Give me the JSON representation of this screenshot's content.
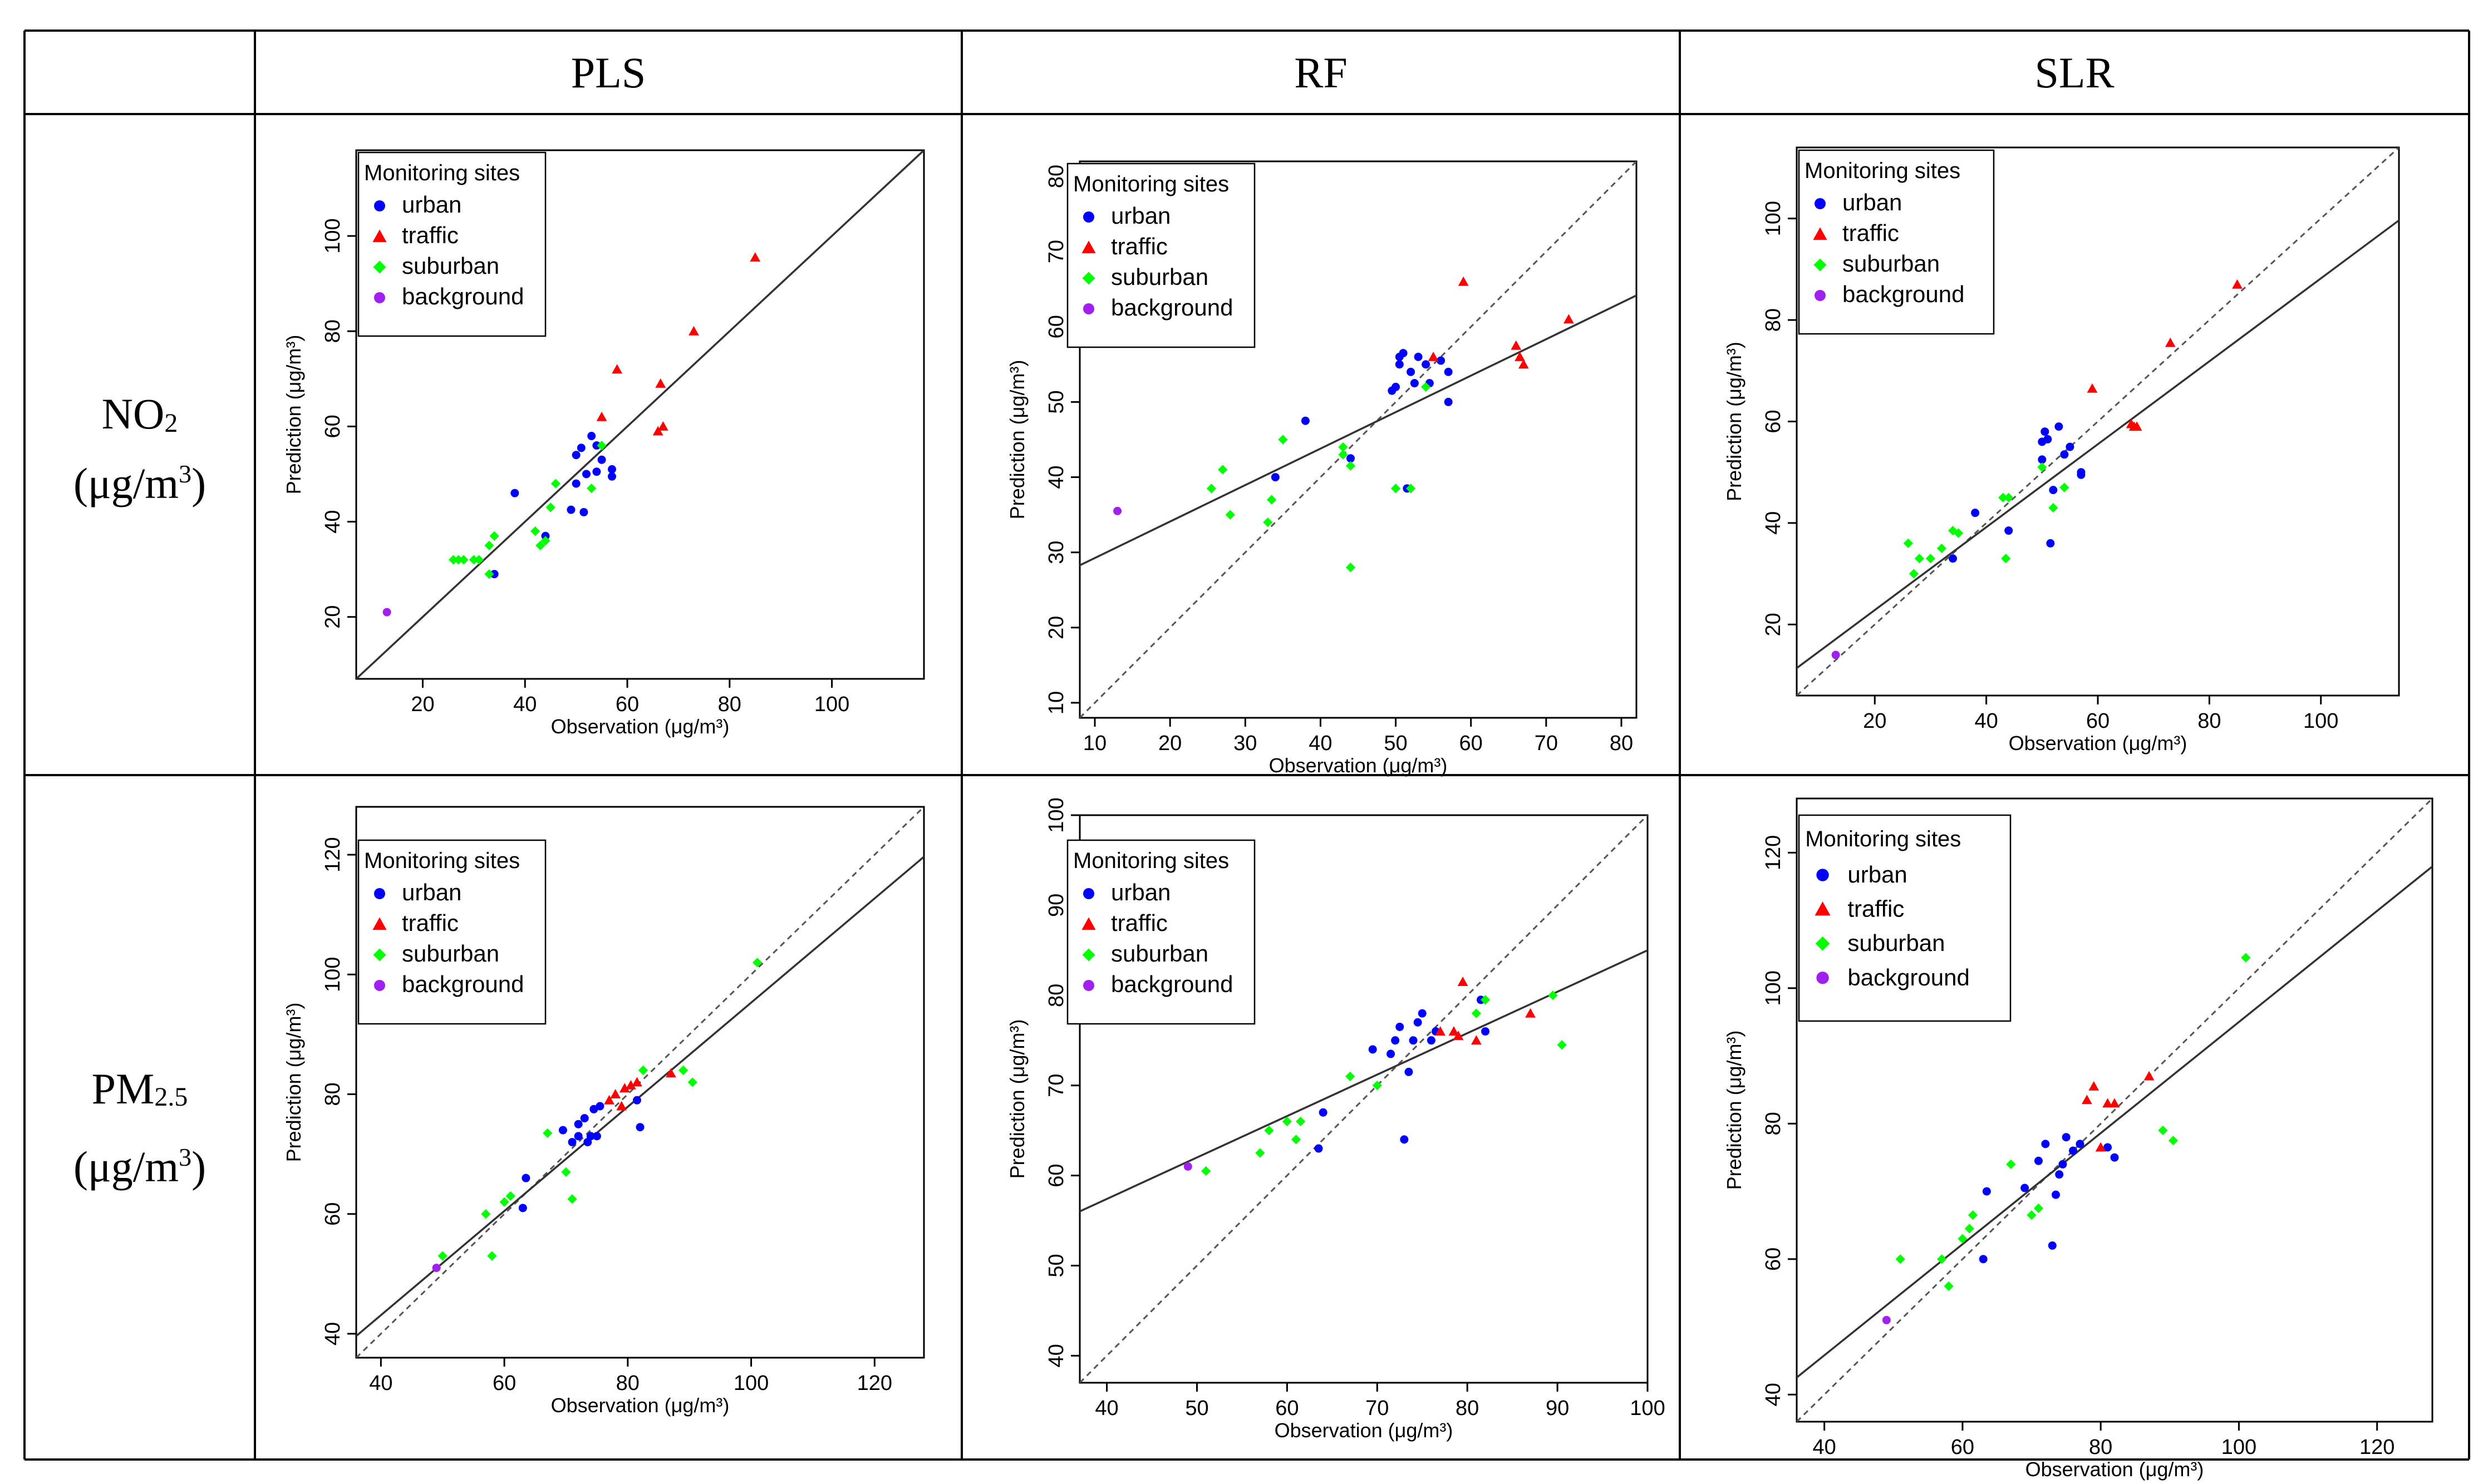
{
  "table": {
    "corner_label": "",
    "columns": [
      "PLS",
      "RF",
      "SLR"
    ],
    "rows": [
      {
        "label_main": "NO",
        "label_sub": "2",
        "unit_pre": "(μg/m",
        "unit_sup": "3",
        "unit_post": ")"
      },
      {
        "label_main": "PM",
        "label_sub": "2.5",
        "unit_pre": "(μg/m",
        "unit_sup": "3",
        "unit_post": ")"
      }
    ]
  },
  "colors": {
    "urban": "#0000ff",
    "traffic": "#ff0000",
    "suburban": "#00ff00",
    "background": "#a020f0",
    "grid_line": "#000000",
    "fit_line": "#333333",
    "identity_line": "#555555"
  },
  "legend": {
    "title": "Monitoring sites",
    "items": [
      {
        "key": "urban",
        "label": "urban",
        "marker": "circle"
      },
      {
        "key": "traffic",
        "label": "traffic",
        "marker": "triangle"
      },
      {
        "key": "suburban",
        "label": "suburban",
        "marker": "diamond"
      },
      {
        "key": "background",
        "label": "background",
        "marker": "circle"
      }
    ]
  },
  "chart_data": [
    {
      "type": "scatter",
      "title": "NO2 - PLS",
      "xlabel": "Observation (μg/m³)",
      "ylabel": "Prediction (μg/m³)",
      "xlim": [
        7,
        118
      ],
      "ylim": [
        7,
        118
      ],
      "xticks": [
        20,
        40,
        60,
        80,
        100
      ],
      "yticks": [
        20,
        40,
        60,
        80,
        100
      ],
      "fit": {
        "slope": 1.0,
        "intercept": 0.0
      },
      "series": [
        {
          "name": "urban",
          "points": [
            [
              38,
              46
            ],
            [
              44,
              37
            ],
            [
              49,
              42.5
            ],
            [
              50,
              48
            ],
            [
              50,
              54
            ],
            [
              51,
              55.5
            ],
            [
              51.5,
              42
            ],
            [
              52,
              50
            ],
            [
              53,
              58
            ],
            [
              54,
              56
            ],
            [
              54,
              50.5
            ],
            [
              55,
              53
            ],
            [
              57,
              49.5
            ],
            [
              57,
              51
            ],
            [
              34,
              29
            ]
          ]
        },
        {
          "name": "traffic",
          "points": [
            [
              55,
              62
            ],
            [
              58,
              72
            ],
            [
              66,
              59
            ],
            [
              66.5,
              69
            ],
            [
              67,
              60
            ],
            [
              73,
              80
            ],
            [
              85,
              95.5
            ]
          ]
        },
        {
          "name": "suburban",
          "points": [
            [
              26,
              32
            ],
            [
              27,
              32
            ],
            [
              28,
              32
            ],
            [
              30,
              32
            ],
            [
              31,
              32
            ],
            [
              33,
              29
            ],
            [
              33,
              35
            ],
            [
              34,
              37
            ],
            [
              42,
              38
            ],
            [
              43,
              35
            ],
            [
              44,
              36
            ],
            [
              45,
              43
            ],
            [
              46,
              48
            ],
            [
              53,
              47
            ],
            [
              55,
              56
            ]
          ]
        },
        {
          "name": "background",
          "points": [
            [
              13,
              21
            ]
          ]
        }
      ]
    },
    {
      "type": "scatter",
      "title": "NO2 - RF",
      "xlabel": "Observation (μg/m³)",
      "ylabel": "Prediction (μg/m³)",
      "xlim": [
        8,
        82
      ],
      "ylim": [
        8,
        82
      ],
      "xticks": [
        10,
        20,
        30,
        40,
        50,
        60,
        70,
        80
      ],
      "yticks": [
        10,
        20,
        30,
        40,
        50,
        60,
        70,
        80
      ],
      "fit": {
        "slope": 0.485,
        "intercept": 24.4
      },
      "series": [
        {
          "name": "urban",
          "points": [
            [
              34,
              40
            ],
            [
              38,
              47.5
            ],
            [
              44,
              42.5
            ],
            [
              49.5,
              51.5
            ],
            [
              50,
              52
            ],
            [
              50.5,
              55
            ],
            [
              50.5,
              56
            ],
            [
              51,
              56.5
            ],
            [
              51.5,
              38.5
            ],
            [
              52,
              54
            ],
            [
              52.5,
              52.5
            ],
            [
              53,
              56
            ],
            [
              54,
              55
            ],
            [
              54.5,
              52.5
            ],
            [
              56,
              55.5
            ],
            [
              57,
              54
            ],
            [
              57,
              50
            ]
          ]
        },
        {
          "name": "traffic",
          "points": [
            [
              55,
              56
            ],
            [
              59,
              66
            ],
            [
              66,
              57.5
            ],
            [
              66.5,
              56
            ],
            [
              67,
              55
            ],
            [
              73,
              61
            ]
          ]
        },
        {
          "name": "suburban",
          "points": [
            [
              25.5,
              38.5
            ],
            [
              27,
              41
            ],
            [
              28,
              35
            ],
            [
              33,
              34
            ],
            [
              33.5,
              37
            ],
            [
              35,
              45
            ],
            [
              43,
              43
            ],
            [
              43,
              44
            ],
            [
              44,
              28
            ],
            [
              44,
              41.5
            ],
            [
              50,
              38.5
            ],
            [
              52,
              38.5
            ],
            [
              54,
              52
            ]
          ]
        },
        {
          "name": "background",
          "points": [
            [
              13,
              35.5
            ]
          ]
        }
      ]
    },
    {
      "type": "scatter",
      "title": "NO2 - SLR",
      "xlabel": "Observation (μg/m³)",
      "ylabel": "Prediction (μg/m³)",
      "xlim": [
        6,
        114
      ],
      "ylim": [
        6,
        114
      ],
      "xticks": [
        20,
        40,
        60,
        80,
        100
      ],
      "yticks": [
        20,
        40,
        60,
        80,
        100
      ],
      "fit": {
        "slope": 0.817,
        "intercept": 6.5
      },
      "series": [
        {
          "name": "urban",
          "points": [
            [
              34,
              33
            ],
            [
              38,
              42
            ],
            [
              44,
              38.5
            ],
            [
              50,
              52.5
            ],
            [
              50,
              56
            ],
            [
              50.5,
              58
            ],
            [
              51,
              56.5
            ],
            [
              51.5,
              36
            ],
            [
              52,
              46.5
            ],
            [
              53,
              59
            ],
            [
              54,
              53.5
            ],
            [
              55,
              55
            ],
            [
              57,
              49.5
            ],
            [
              57,
              50
            ]
          ]
        },
        {
          "name": "traffic",
          "points": [
            [
              59,
              66.5
            ],
            [
              66,
              59.5
            ],
            [
              66.5,
              59
            ],
            [
              67,
              59
            ],
            [
              73,
              75.5
            ],
            [
              85,
              87
            ]
          ]
        },
        {
          "name": "suburban",
          "points": [
            [
              26,
              36
            ],
            [
              27,
              30
            ],
            [
              28,
              33
            ],
            [
              30,
              33
            ],
            [
              32,
              35
            ],
            [
              34,
              38.5
            ],
            [
              35,
              38
            ],
            [
              43,
              45
            ],
            [
              43.5,
              33
            ],
            [
              44,
              45
            ],
            [
              50,
              51
            ],
            [
              52,
              43
            ],
            [
              54,
              47
            ]
          ]
        },
        {
          "name": "background",
          "points": [
            [
              13,
              14
            ]
          ]
        }
      ]
    },
    {
      "type": "scatter",
      "title": "PM2.5 - PLS",
      "xlabel": "Observation (μg/m³)",
      "ylabel": "Prediction (μg/m³)",
      "xlim": [
        36,
        128
      ],
      "ylim": [
        36,
        128
      ],
      "xticks": [
        40,
        60,
        80,
        100,
        120
      ],
      "yticks": [
        40,
        60,
        80,
        100,
        120
      ],
      "fit": {
        "slope": 0.87,
        "intercept": 8.3
      },
      "series": [
        {
          "name": "urban",
          "points": [
            [
              63,
              61
            ],
            [
              63.5,
              66
            ],
            [
              69.5,
              74
            ],
            [
              71,
              72
            ],
            [
              72,
              73
            ],
            [
              72,
              75
            ],
            [
              73,
              76
            ],
            [
              73.5,
              72
            ],
            [
              74,
              73
            ],
            [
              74.5,
              77.5
            ],
            [
              75,
              73
            ],
            [
              75.5,
              78
            ],
            [
              81.5,
              79
            ],
            [
              82,
              74.5
            ]
          ]
        },
        {
          "name": "traffic",
          "points": [
            [
              77,
              79
            ],
            [
              78,
              80
            ],
            [
              79,
              78
            ],
            [
              79.5,
              81
            ],
            [
              80.5,
              81.5
            ],
            [
              81.5,
              82
            ],
            [
              87,
              83.5
            ]
          ]
        },
        {
          "name": "suburban",
          "points": [
            [
              50,
              53
            ],
            [
              57,
              60
            ],
            [
              58,
              53
            ],
            [
              60,
              62
            ],
            [
              61,
              63
            ],
            [
              67,
              73.5
            ],
            [
              70,
              67
            ],
            [
              71,
              62.5
            ],
            [
              82.5,
              84
            ],
            [
              89,
              84
            ],
            [
              90.5,
              82
            ],
            [
              101,
              102
            ]
          ]
        },
        {
          "name": "background",
          "points": [
            [
              49,
              51
            ]
          ]
        }
      ]
    },
    {
      "type": "scatter",
      "title": "PM2.5 - RF",
      "xlabel": "Observation (μg/m³)",
      "ylabel": "Prediction (μg/m³)",
      "xlim": [
        37,
        100
      ],
      "ylim": [
        37,
        100
      ],
      "xticks": [
        40,
        50,
        60,
        70,
        80,
        90,
        100
      ],
      "yticks": [
        40,
        50,
        60,
        70,
        80,
        90,
        100
      ],
      "fit": {
        "slope": 0.46,
        "intercept": 39.0
      },
      "series": [
        {
          "name": "urban",
          "points": [
            [
              63.5,
              63
            ],
            [
              64,
              67
            ],
            [
              69.5,
              74
            ],
            [
              71.5,
              73.5
            ],
            [
              72,
              75
            ],
            [
              72.5,
              76.5
            ],
            [
              73,
              64
            ],
            [
              73.5,
              71.5
            ],
            [
              74,
              75
            ],
            [
              74.5,
              77
            ],
            [
              75,
              78
            ],
            [
              76,
              75
            ],
            [
              76.5,
              76
            ],
            [
              81.5,
              79.5
            ],
            [
              82,
              76
            ]
          ]
        },
        {
          "name": "traffic",
          "points": [
            [
              77,
              76
            ],
            [
              78.5,
              76
            ],
            [
              79,
              75.5
            ],
            [
              79.5,
              81.5
            ],
            [
              81,
              75
            ],
            [
              87,
              78
            ]
          ]
        },
        {
          "name": "suburban",
          "points": [
            [
              51,
              60.5
            ],
            [
              57,
              62.5
            ],
            [
              58,
              65
            ],
            [
              60,
              66
            ],
            [
              61,
              64
            ],
            [
              61.5,
              66
            ],
            [
              67,
              71
            ],
            [
              70,
              70
            ],
            [
              81,
              78
            ],
            [
              89.5,
              80
            ],
            [
              90.5,
              74.5
            ],
            [
              82,
              79.5
            ]
          ]
        },
        {
          "name": "background",
          "points": [
            [
              49,
              61
            ]
          ]
        }
      ]
    },
    {
      "type": "scatter",
      "title": "PM2.5 - SLR",
      "xlabel": "Observation (μg/m³)",
      "ylabel": "Prediction (μg/m³)",
      "xlim": [
        36,
        128
      ],
      "ylim": [
        36,
        128
      ],
      "xticks": [
        40,
        60,
        80,
        100,
        120
      ],
      "yticks": [
        40,
        60,
        80,
        100,
        120
      ],
      "fit": {
        "slope": 0.82,
        "intercept": 13.0
      },
      "series": [
        {
          "name": "urban",
          "points": [
            [
              63,
              60
            ],
            [
              63.5,
              70
            ],
            [
              69,
              70.5
            ],
            [
              71,
              74.5
            ],
            [
              72,
              77
            ],
            [
              73,
              62
            ],
            [
              73.5,
              69.5
            ],
            [
              74,
              72.5
            ],
            [
              74.5,
              74
            ],
            [
              75,
              78
            ],
            [
              76,
              76
            ],
            [
              77,
              77
            ],
            [
              81,
              76.5
            ],
            [
              82,
              75
            ]
          ]
        },
        {
          "name": "traffic",
          "points": [
            [
              78,
              83.5
            ],
            [
              79,
              85.5
            ],
            [
              80,
              76.5
            ],
            [
              81,
              83
            ],
            [
              82,
              83
            ],
            [
              87,
              87
            ]
          ]
        },
        {
          "name": "suburban",
          "points": [
            [
              51,
              60
            ],
            [
              57,
              60
            ],
            [
              58,
              56
            ],
            [
              60,
              63
            ],
            [
              61,
              64.5
            ],
            [
              61.5,
              66.5
            ],
            [
              67,
              74
            ],
            [
              70,
              66.5
            ],
            [
              71,
              67.5
            ],
            [
              89,
              79
            ],
            [
              90.5,
              77.5
            ],
            [
              101,
              104.5
            ]
          ]
        },
        {
          "name": "background",
          "points": [
            [
              49,
              51
            ]
          ]
        }
      ]
    }
  ]
}
